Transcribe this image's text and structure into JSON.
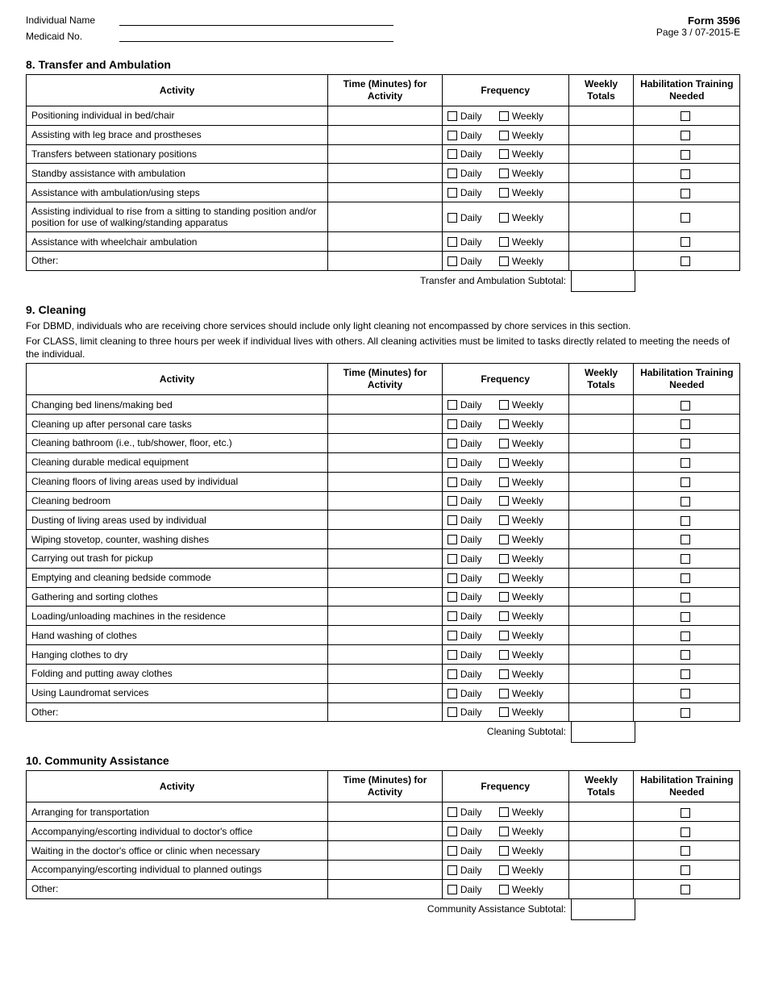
{
  "header": {
    "individual_name_label": "Individual Name",
    "medicaid_no_label": "Medicaid No.",
    "form_title": "Form 3596",
    "page_ref": "Page 3 / 07-2015-E"
  },
  "frequency_labels": {
    "daily": "Daily",
    "weekly": "Weekly"
  },
  "columns": {
    "activity": "Activity",
    "time": "Time (Minutes) for Activity",
    "frequency": "Frequency",
    "totals": "Weekly Totals",
    "hab": "Habilitation Training Needed"
  },
  "sections": [
    {
      "title": "8. Transfer and Ambulation",
      "notes": [],
      "subtotal_label": "Transfer and Ambulation Subtotal:",
      "rows": [
        "Positioning individual in bed/chair",
        "Assisting with leg brace and prostheses",
        "Transfers between stationary positions",
        "Standby assistance with ambulation",
        "Assistance with ambulation/using steps",
        "Assisting individual to rise from a sitting to standing position and/or position for use of walking/standing apparatus",
        "Assistance with wheelchair ambulation",
        "Other:"
      ]
    },
    {
      "title": "9. Cleaning",
      "notes": [
        "For DBMD, individuals who are receiving chore services should include only light cleaning not encompassed by chore services in this section.",
        "For CLASS, limit cleaning to three hours per week if individual lives with others. All cleaning activities must be limited to tasks directly related to meeting the needs of the individual."
      ],
      "subtotal_label": "Cleaning Subtotal:",
      "rows": [
        "Changing bed linens/making bed",
        "Cleaning up after personal care tasks",
        "Cleaning bathroom (i.e., tub/shower, floor, etc.)",
        "Cleaning durable medical equipment",
        "Cleaning floors of living areas used by individual",
        "Cleaning bedroom",
        "Dusting of living areas used by individual",
        " Wiping stovetop, counter, washing dishes",
        "Carrying out trash for pickup",
        "Emptying and cleaning bedside commode",
        "Gathering and sorting clothes",
        "Loading/unloading machines in the residence",
        "Hand washing of clothes",
        "Hanging clothes to dry",
        "Folding and putting away clothes",
        "Using Laundromat services",
        "Other:"
      ]
    },
    {
      "title": "10. Community Assistance",
      "notes": [],
      "subtotal_label": "Community Assistance Subtotal:",
      "rows": [
        "Arranging for transportation",
        "Accompanying/escorting individual to doctor's office",
        "Waiting in the doctor's office or clinic when necessary",
        "Accompanying/escorting individual to planned outings",
        "Other:"
      ]
    }
  ]
}
